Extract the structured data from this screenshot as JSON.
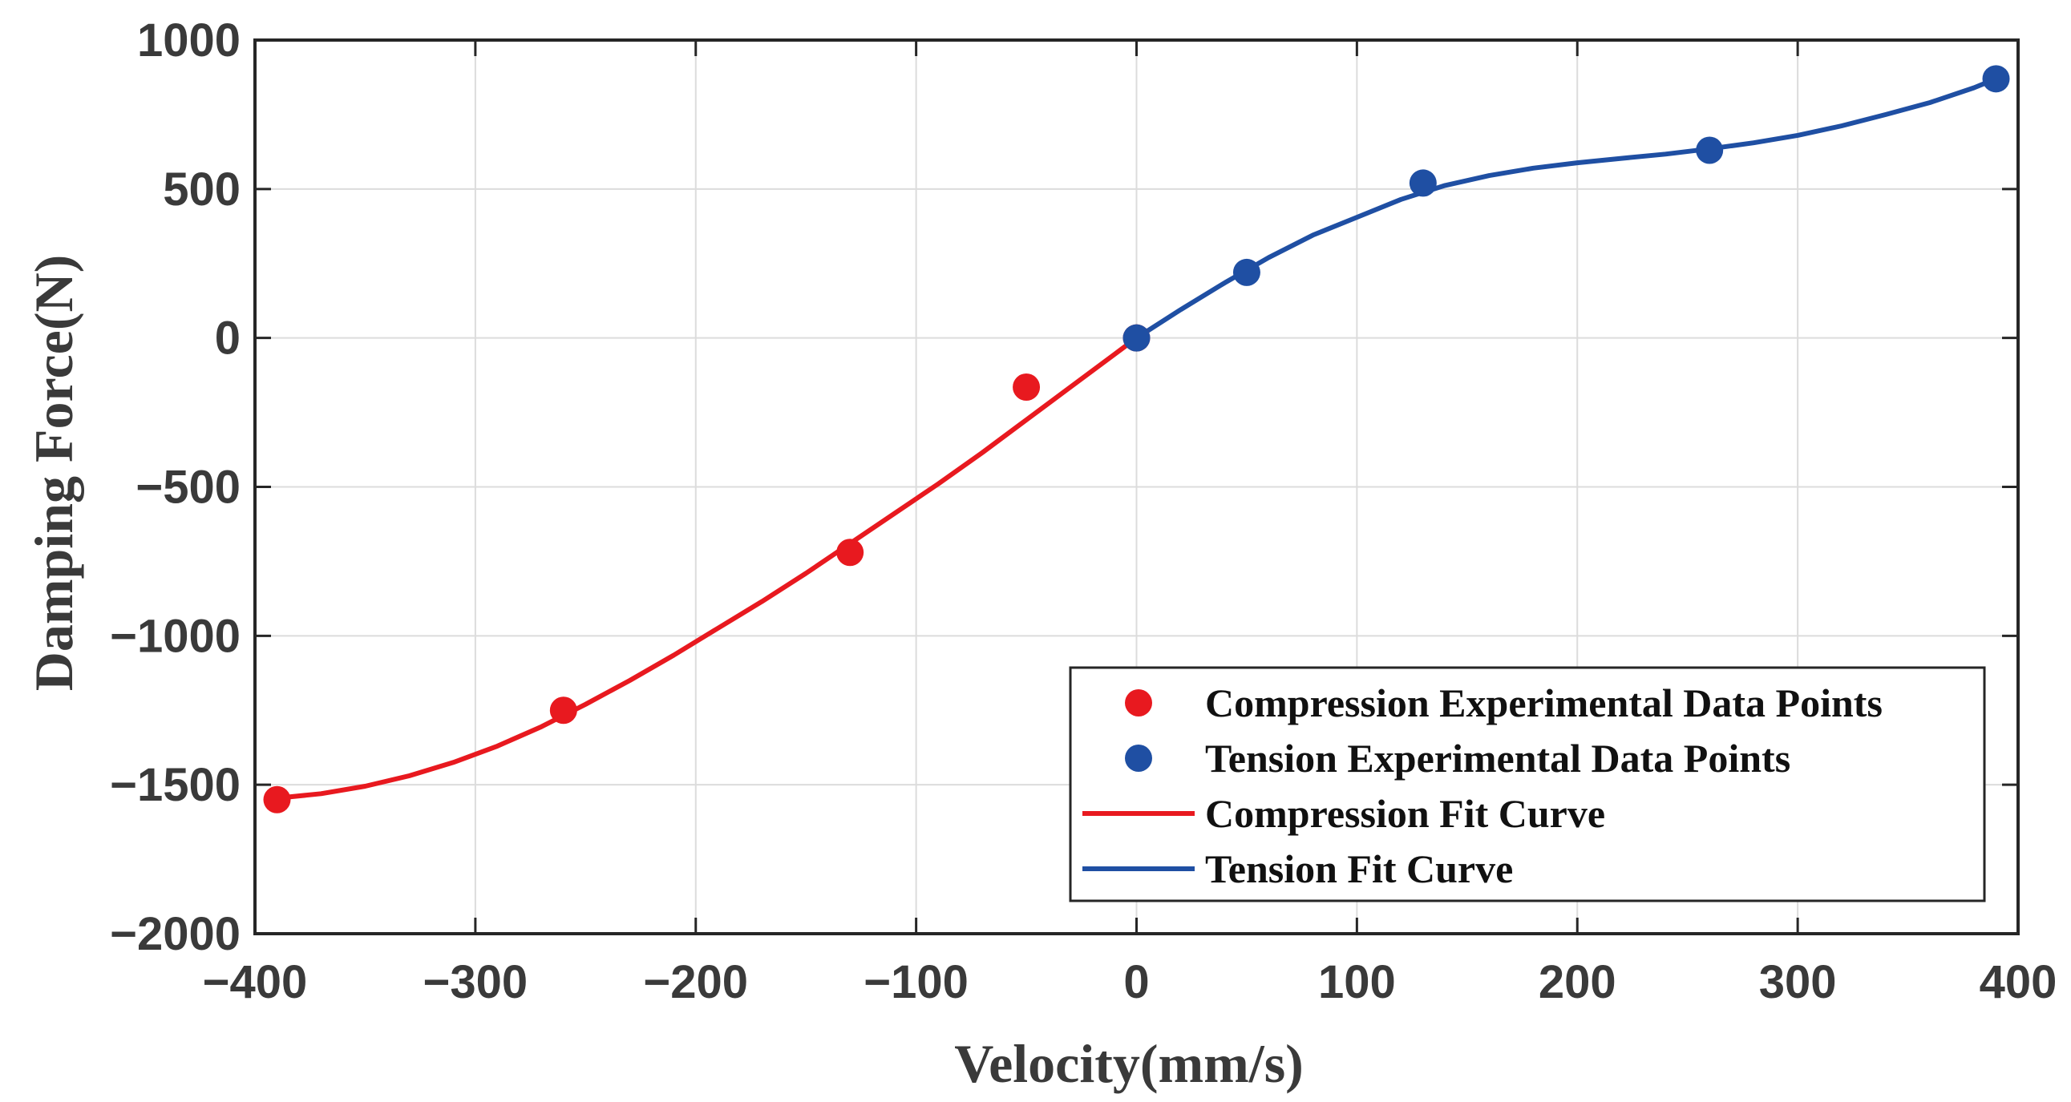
{
  "chart_data": {
    "type": "scatter",
    "xlabel": "Velocity(mm/s)",
    "ylabel": "Damping Force(N)",
    "xlim": [
      -400,
      400
    ],
    "ylim": [
      -2000,
      1000
    ],
    "xticks": [
      -400,
      -300,
      -200,
      -100,
      0,
      100,
      200,
      300,
      400
    ],
    "yticks": [
      -2000,
      -1500,
      -1000,
      -500,
      0,
      500,
      1000
    ],
    "grid": true,
    "legend_position": "bottom-right",
    "colors": {
      "compression": "#e8191f",
      "tension": "#1f4fa3",
      "axis": "#262626",
      "grid": "#dcdcdc"
    },
    "series": [
      {
        "name": "Compression Experimental Data Points",
        "kind": "points",
        "color_key": "compression",
        "x": [
          -390,
          -260,
          -130,
          -50,
          0
        ],
        "y": [
          -1550,
          -1250,
          -720,
          -165,
          0
        ]
      },
      {
        "name": "Tension Experimental Data Points",
        "kind": "points",
        "color_key": "tension",
        "x": [
          0,
          50,
          130,
          260,
          390
        ],
        "y": [
          0,
          220,
          520,
          630,
          870
        ]
      },
      {
        "name": "Compression Fit Curve",
        "kind": "line",
        "color_key": "compression",
        "x": [
          -390,
          -370,
          -350,
          -330,
          -310,
          -290,
          -270,
          -250,
          -230,
          -210,
          -190,
          -170,
          -150,
          -130,
          -110,
          -90,
          -70,
          -50,
          -30,
          -10,
          0
        ],
        "y": [
          -1545,
          -1530,
          -1505,
          -1470,
          -1425,
          -1370,
          -1305,
          -1230,
          -1150,
          -1065,
          -975,
          -885,
          -790,
          -690,
          -590,
          -490,
          -385,
          -275,
          -165,
          -55,
          0
        ]
      },
      {
        "name": "Tension Fit Curve",
        "kind": "line",
        "color_key": "tension",
        "x": [
          0,
          20,
          40,
          60,
          80,
          100,
          120,
          140,
          160,
          180,
          200,
          220,
          240,
          260,
          280,
          300,
          320,
          340,
          360,
          380,
          390
        ],
        "y": [
          0,
          95,
          185,
          270,
          345,
          405,
          465,
          512,
          545,
          570,
          588,
          603,
          617,
          635,
          655,
          680,
          712,
          750,
          790,
          840,
          870
        ]
      }
    ]
  }
}
